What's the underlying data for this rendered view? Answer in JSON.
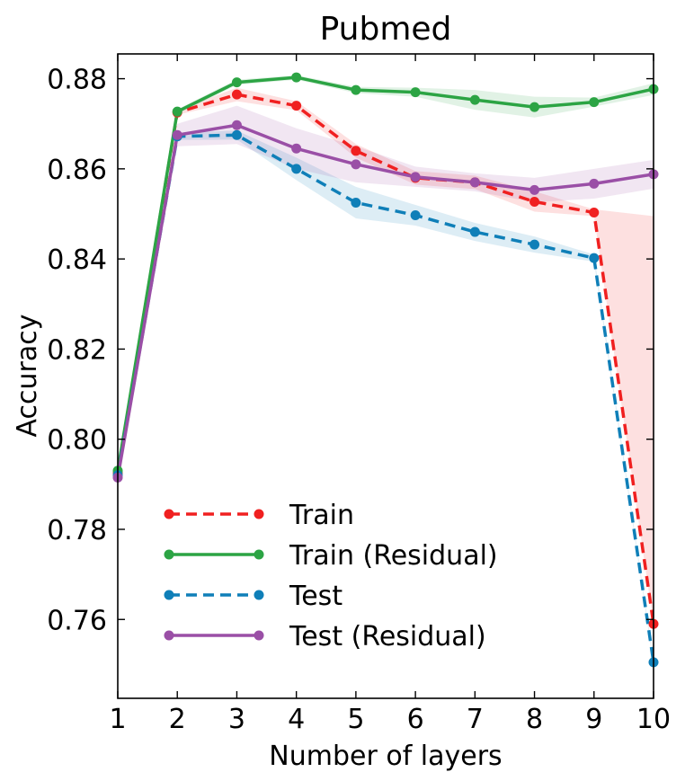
{
  "chart_data": {
    "type": "line",
    "title": "Pubmed",
    "xlabel": "Number of layers",
    "ylabel": "Accuracy",
    "x": [
      1,
      2,
      3,
      4,
      5,
      6,
      7,
      8,
      9,
      10
    ],
    "xlim": [
      1,
      10
    ],
    "ylim": [
      0.7425,
      0.8855
    ],
    "xticks": [
      "1",
      "2",
      "3",
      "4",
      "5",
      "6",
      "7",
      "8",
      "9",
      "10"
    ],
    "yticks": [
      "0.76",
      "0.78",
      "0.80",
      "0.82",
      "0.84",
      "0.86",
      "0.88"
    ],
    "ytick_values": [
      0.76,
      0.78,
      0.8,
      0.82,
      0.84,
      0.86,
      0.88
    ],
    "legend_position": "lower-left",
    "series": [
      {
        "name": "Train",
        "color": "#f02020",
        "linestyle": "dashed",
        "values": [
          0.7925,
          0.8725,
          0.8765,
          0.874,
          0.864,
          0.858,
          0.857,
          0.8527,
          0.8503,
          0.759
        ],
        "band_upper": [
          0.7935,
          0.873,
          0.878,
          0.875,
          0.8655,
          0.8595,
          0.8585,
          0.855,
          0.851,
          0.8495
        ],
        "band_lower": [
          0.7915,
          0.872,
          0.875,
          0.873,
          0.8625,
          0.8565,
          0.8555,
          0.8505,
          0.8495,
          0.759
        ]
      },
      {
        "name": "Train (Residual)",
        "color": "#2ca444",
        "linestyle": "solid",
        "values": [
          0.793,
          0.8727,
          0.8792,
          0.8803,
          0.8775,
          0.877,
          0.8753,
          0.8737,
          0.8748,
          0.8777
        ],
        "band_upper": [
          0.7935,
          0.8732,
          0.8798,
          0.8808,
          0.8782,
          0.878,
          0.8775,
          0.876,
          0.8758,
          0.879
        ],
        "band_lower": [
          0.7925,
          0.8722,
          0.8786,
          0.8798,
          0.8768,
          0.876,
          0.8731,
          0.8714,
          0.8738,
          0.8764
        ]
      },
      {
        "name": "Test",
        "color": "#0f7fb8",
        "linestyle": "dashed",
        "values": [
          0.792,
          0.8672,
          0.8675,
          0.86,
          0.8525,
          0.8497,
          0.846,
          0.8432,
          0.8402,
          0.7505
        ],
        "band_upper": [
          0.7925,
          0.868,
          0.8685,
          0.8625,
          0.856,
          0.852,
          0.848,
          0.845,
          0.841,
          0.751
        ],
        "band_lower": [
          0.7915,
          0.8664,
          0.8665,
          0.8575,
          0.849,
          0.8474,
          0.844,
          0.8414,
          0.8394,
          0.75
        ]
      },
      {
        "name": "Test (Residual)",
        "color": "#9a4fa6",
        "linestyle": "solid",
        "values": [
          0.7915,
          0.8675,
          0.8697,
          0.8645,
          0.861,
          0.8582,
          0.857,
          0.8553,
          0.8567,
          0.8588
        ],
        "band_upper": [
          0.792,
          0.87,
          0.874,
          0.869,
          0.865,
          0.8605,
          0.859,
          0.858,
          0.86,
          0.862
        ],
        "band_lower": [
          0.791,
          0.865,
          0.8655,
          0.86,
          0.857,
          0.856,
          0.855,
          0.8526,
          0.8534,
          0.8556
        ]
      }
    ]
  }
}
